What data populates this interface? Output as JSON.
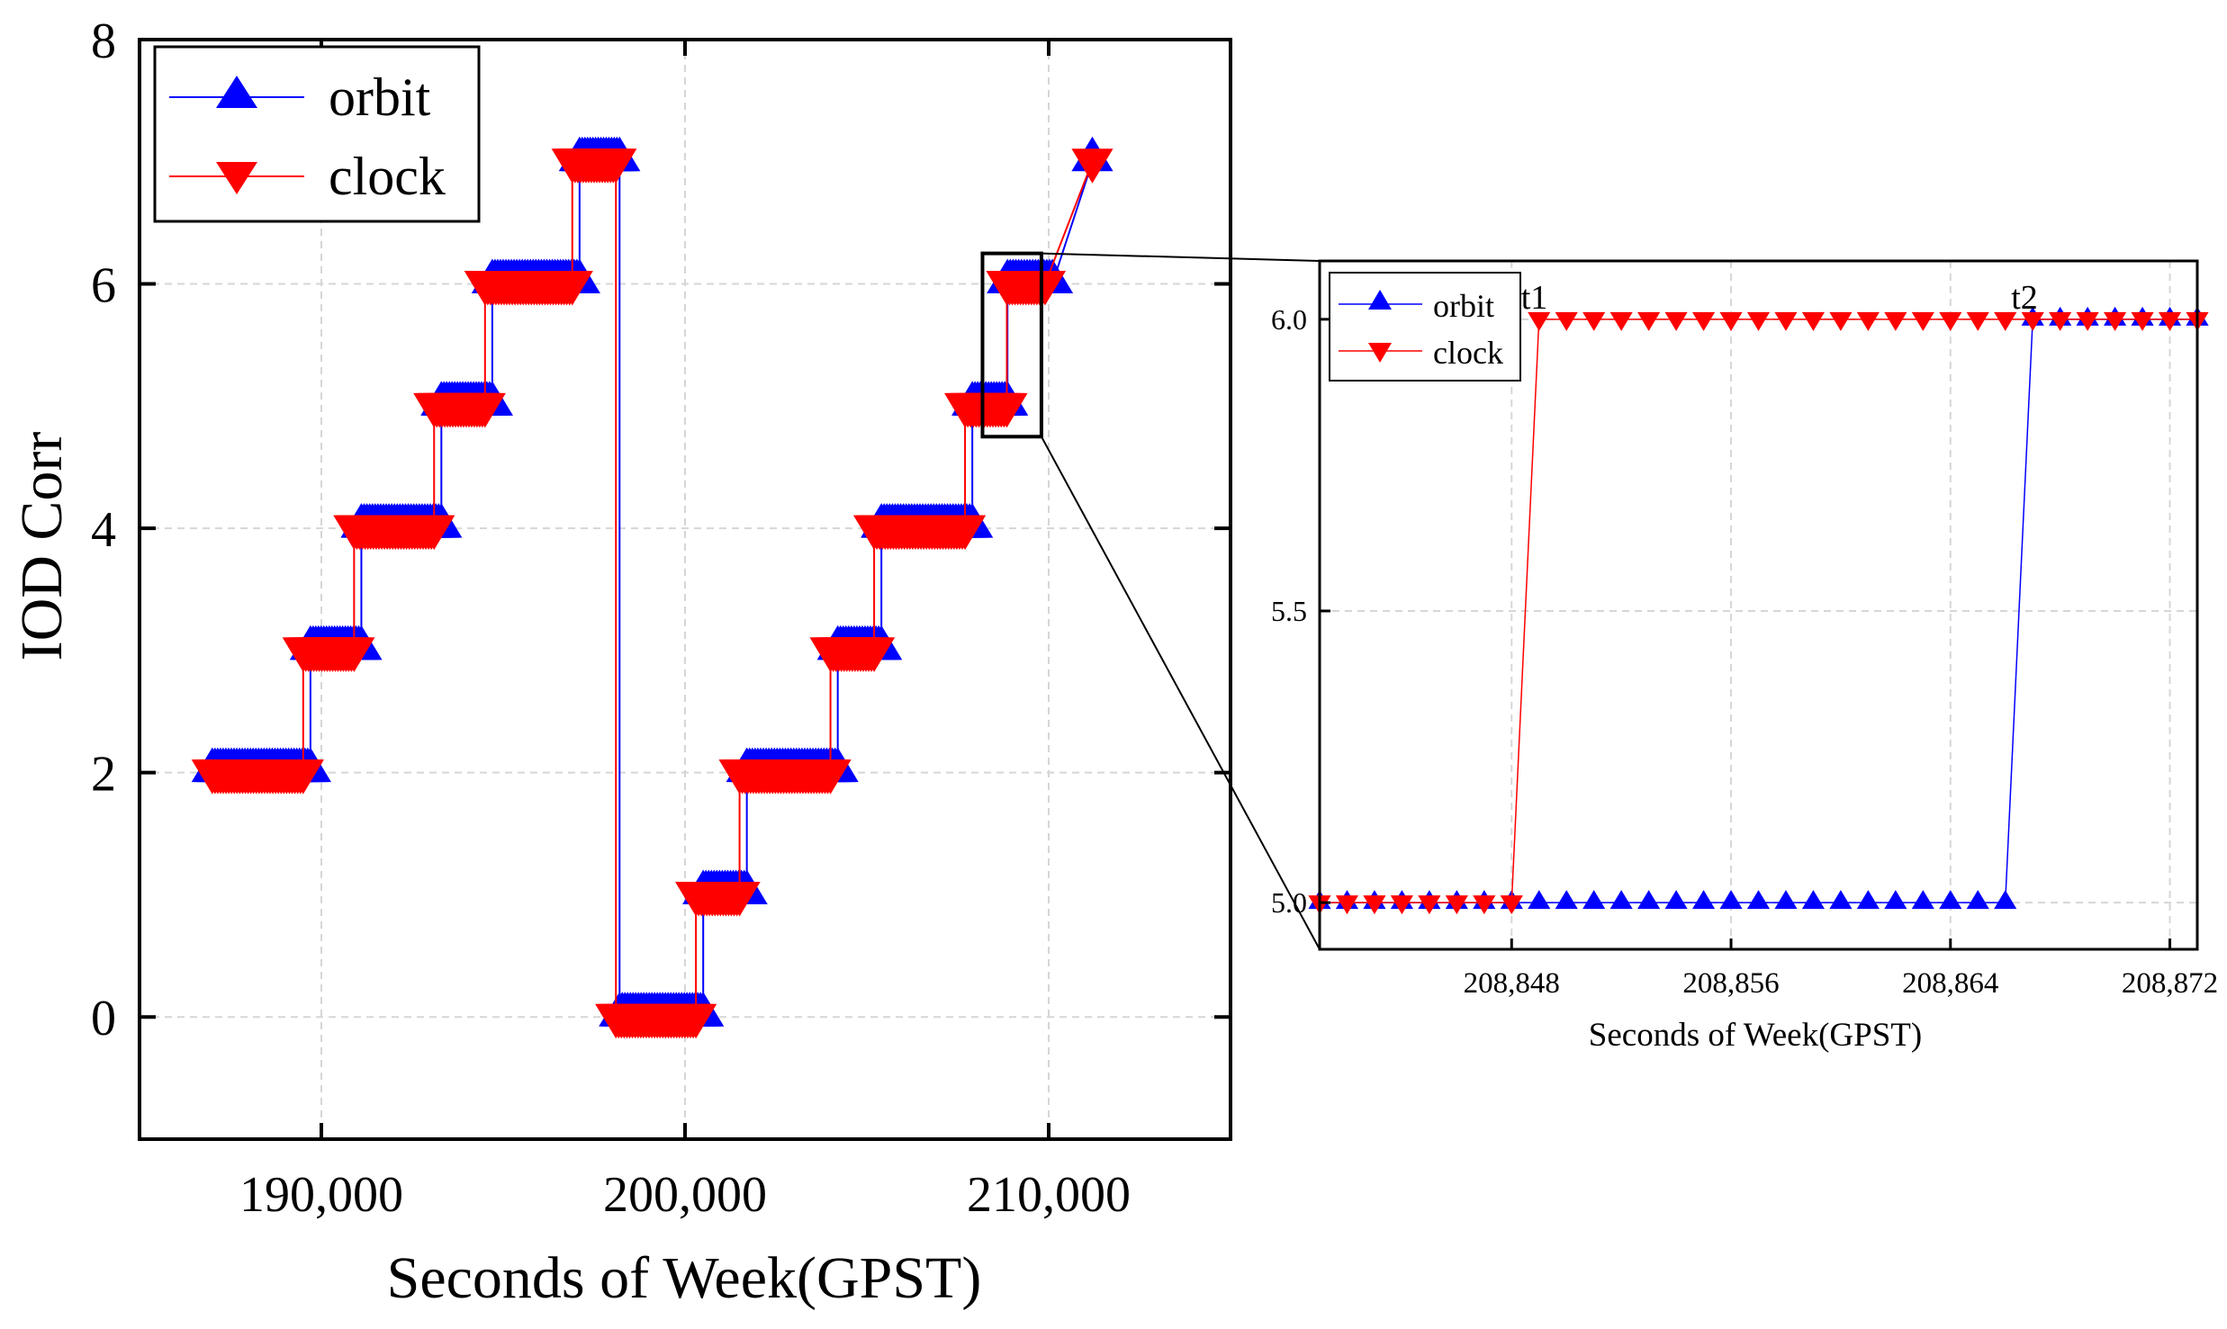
{
  "chart_data": [
    {
      "type": "line",
      "title": "",
      "xlabel": "Seconds of Week(GPST)",
      "ylabel": "IOD Corr",
      "xlim": [
        185000,
        215000
      ],
      "ylim": [
        -1,
        8
      ],
      "xticks": [
        190000,
        200000,
        210000
      ],
      "xtick_labels": [
        "190,000",
        "200,000",
        "210,000"
      ],
      "yticks": [
        0,
        2,
        4,
        6,
        8
      ],
      "ytick_labels": [
        "0",
        "2",
        "4",
        "6",
        "8"
      ],
      "grid": true,
      "legend": "top-left",
      "series": [
        {
          "name": "orbit",
          "color": "#0000ff",
          "marker": "triangle-up",
          "segments": [
            {
              "x0": 187000,
              "x1": 189700,
              "y": 2
            },
            {
              "x0": 189700,
              "x1": 191100,
              "y": 3
            },
            {
              "x0": 191100,
              "x1": 193300,
              "y": 4
            },
            {
              "x0": 193300,
              "x1": 194700,
              "y": 5
            },
            {
              "x0": 194700,
              "x1": 197100,
              "y": 6
            },
            {
              "x0": 197100,
              "x1": 198200,
              "y": 7
            },
            {
              "x0": 198200,
              "x1": 200500,
              "y": 0
            },
            {
              "x0": 200500,
              "x1": 201700,
              "y": 1
            },
            {
              "x0": 201700,
              "x1": 204200,
              "y": 2
            },
            {
              "x0": 204200,
              "x1": 205400,
              "y": 3
            },
            {
              "x0": 205400,
              "x1": 207900,
              "y": 4
            },
            {
              "x0": 207900,
              "x1": 208867,
              "y": 5
            },
            {
              "x0": 208867,
              "x1": 210100,
              "y": 6
            },
            {
              "x0": 211200,
              "x1": 211200,
              "y": 7
            }
          ]
        },
        {
          "name": "clock",
          "color": "#ff0000",
          "marker": "triangle-down",
          "segments": [
            {
              "x0": 187000,
              "x1": 189500,
              "y": 2
            },
            {
              "x0": 189500,
              "x1": 190900,
              "y": 3
            },
            {
              "x0": 190900,
              "x1": 193100,
              "y": 4
            },
            {
              "x0": 193100,
              "x1": 194500,
              "y": 5
            },
            {
              "x0": 194500,
              "x1": 196900,
              "y": 6
            },
            {
              "x0": 196900,
              "x1": 198100,
              "y": 7
            },
            {
              "x0": 198100,
              "x1": 200300,
              "y": 0
            },
            {
              "x0": 200300,
              "x1": 201500,
              "y": 1
            },
            {
              "x0": 201500,
              "x1": 204000,
              "y": 2
            },
            {
              "x0": 204000,
              "x1": 205200,
              "y": 3
            },
            {
              "x0": 205200,
              "x1": 207700,
              "y": 4
            },
            {
              "x0": 207700,
              "x1": 208849,
              "y": 5
            },
            {
              "x0": 208849,
              "x1": 209900,
              "y": 6
            },
            {
              "x0": 211200,
              "x1": 211200,
              "y": 7
            }
          ]
        }
      ],
      "zoom_box": {
        "x0": 208180,
        "x1": 209800,
        "y0": 4.75,
        "y1": 6.25
      }
    },
    {
      "type": "line",
      "title": "",
      "xlabel": "Seconds of  Week(GPST)",
      "ylabel": "",
      "xlim": [
        208841,
        208873
      ],
      "ylim": [
        4.92,
        6.1
      ],
      "xticks": [
        208848,
        208856,
        208864,
        208872
      ],
      "xtick_labels": [
        "208,848",
        "208,856",
        "208,864",
        "208,872"
      ],
      "yticks": [
        5.0,
        5.5,
        6.0
      ],
      "ytick_labels": [
        "5.0",
        "5.5",
        "6.0"
      ],
      "grid": true,
      "legend": "top-left",
      "annotations": [
        {
          "text": "t1",
          "x": 208849,
          "y": 6.0
        },
        {
          "text": "t2",
          "x": 208867,
          "y": 6.0
        }
      ],
      "series": [
        {
          "name": "orbit",
          "color": "#0000ff",
          "marker": "triangle-up",
          "x": [
            208841,
            208842,
            208843,
            208844,
            208845,
            208846,
            208847,
            208848,
            208849,
            208850,
            208851,
            208852,
            208853,
            208854,
            208855,
            208856,
            208857,
            208858,
            208859,
            208860,
            208861,
            208862,
            208863,
            208864,
            208865,
            208866,
            208867,
            208868,
            208869,
            208870,
            208871,
            208872,
            208873
          ],
          "y": [
            5,
            5,
            5,
            5,
            5,
            5,
            5,
            5,
            5,
            5,
            5,
            5,
            5,
            5,
            5,
            5,
            5,
            5,
            5,
            5,
            5,
            5,
            5,
            5,
            5,
            5,
            6,
            6,
            6,
            6,
            6,
            6,
            6
          ]
        },
        {
          "name": "clock",
          "color": "#ff0000",
          "marker": "triangle-down",
          "x": [
            208841,
            208842,
            208843,
            208844,
            208845,
            208846,
            208847,
            208848,
            208849,
            208850,
            208851,
            208852,
            208853,
            208854,
            208855,
            208856,
            208857,
            208858,
            208859,
            208860,
            208861,
            208862,
            208863,
            208864,
            208865,
            208866,
            208867,
            208868,
            208869,
            208870,
            208871,
            208872,
            208873
          ],
          "y": [
            5,
            5,
            5,
            5,
            5,
            5,
            5,
            5,
            6,
            6,
            6,
            6,
            6,
            6,
            6,
            6,
            6,
            6,
            6,
            6,
            6,
            6,
            6,
            6,
            6,
            6,
            6,
            6,
            6,
            6,
            6,
            6,
            6
          ]
        }
      ]
    }
  ]
}
